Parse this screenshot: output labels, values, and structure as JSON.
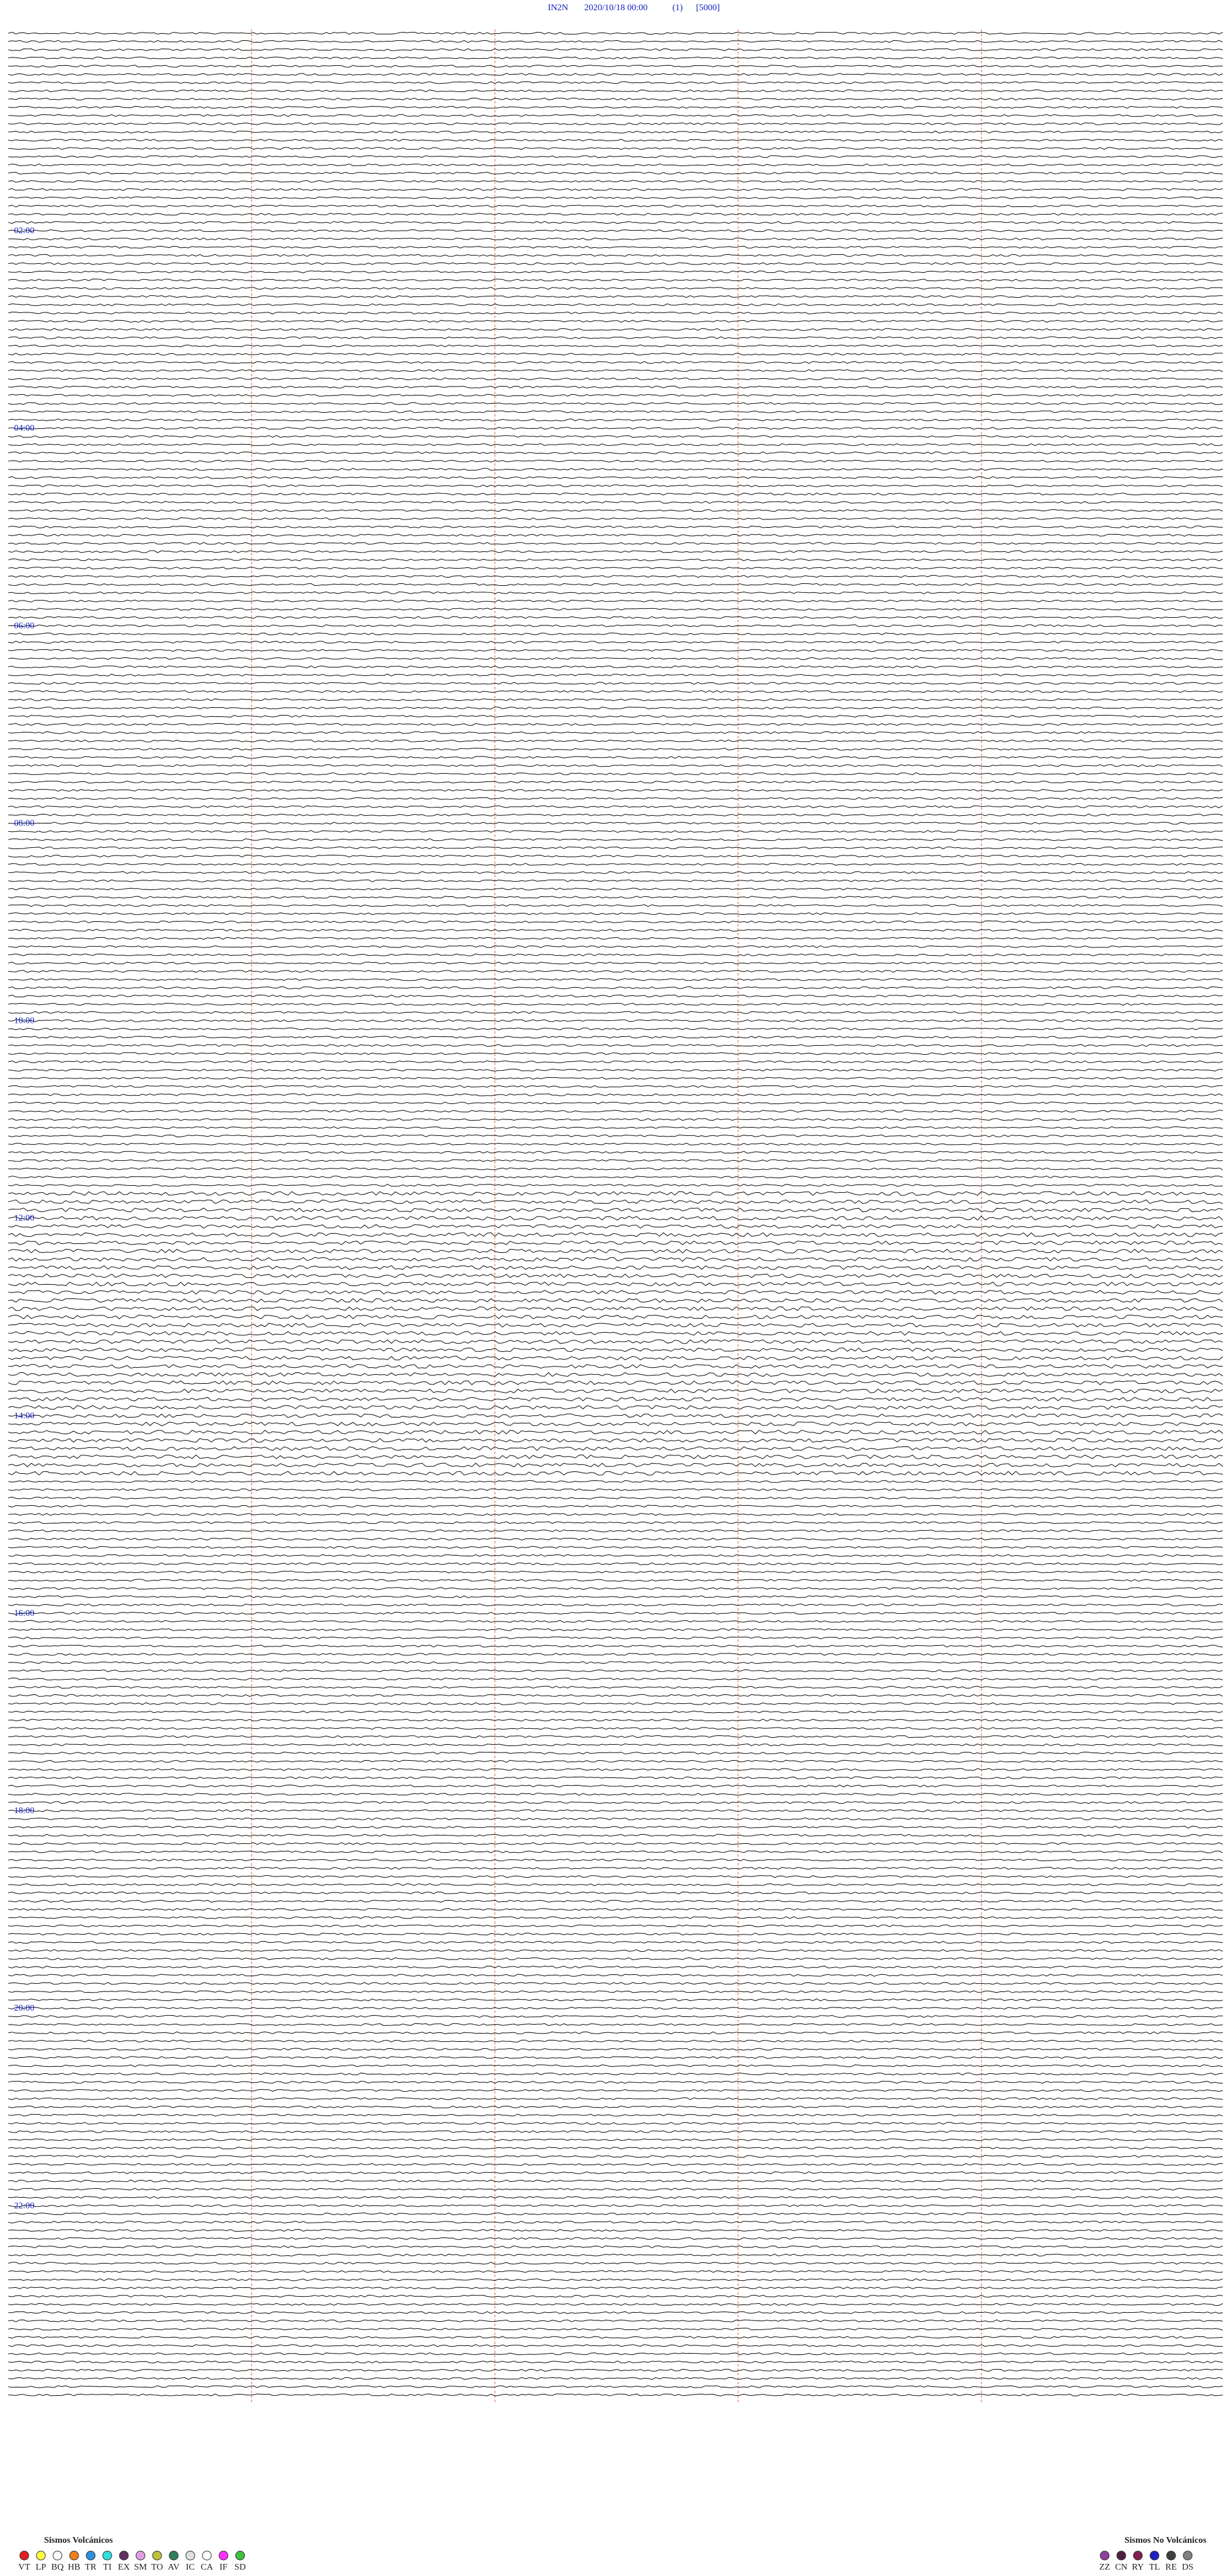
{
  "header": {
    "station": "IN2N",
    "datetime": "2020/10/18 00:00",
    "channel": "(1)",
    "scale": "[5000]"
  },
  "time_labels": [
    "02:00",
    "04:00",
    "06:00",
    "08:00",
    "10:00",
    "12:00",
    "14:00",
    "16:00",
    "18:00",
    "20:00",
    "22:00"
  ],
  "legend_volcanic": {
    "title": "Sismos Volcánicos",
    "items": [
      {
        "label": "VT",
        "color": "#e02020"
      },
      {
        "label": "LP",
        "color": "#ffff40"
      },
      {
        "label": "BQ",
        "color": "#ffffff"
      },
      {
        "label": "HB",
        "color": "#f08020"
      },
      {
        "label": "TR",
        "color": "#3090e0"
      },
      {
        "label": "TI",
        "color": "#30e0e0"
      },
      {
        "label": "EX",
        "color": "#603060"
      },
      {
        "label": "SM",
        "color": "#e0a0e0"
      },
      {
        "label": "TO",
        "color": "#c0c040"
      },
      {
        "label": "AV",
        "color": "#308060"
      },
      {
        "label": "IC",
        "color": "#e0e0e0"
      },
      {
        "label": "CA",
        "color": "#ffffff"
      },
      {
        "label": "IF",
        "color": "#ff30ff"
      },
      {
        "label": "SD",
        "color": "#40c040"
      }
    ]
  },
  "legend_nonvolcanic": {
    "title": "Sismos No Volcánicos",
    "items": [
      {
        "label": "ZZ",
        "color": "#9040a0"
      },
      {
        "label": "CN",
        "color": "#502040"
      },
      {
        "label": "RY",
        "color": "#802050"
      },
      {
        "label": "TL",
        "color": "#2020c0"
      },
      {
        "label": "RE",
        "color": "#404040"
      },
      {
        "label": "DS",
        "color": "#808080"
      }
    ]
  }
}
